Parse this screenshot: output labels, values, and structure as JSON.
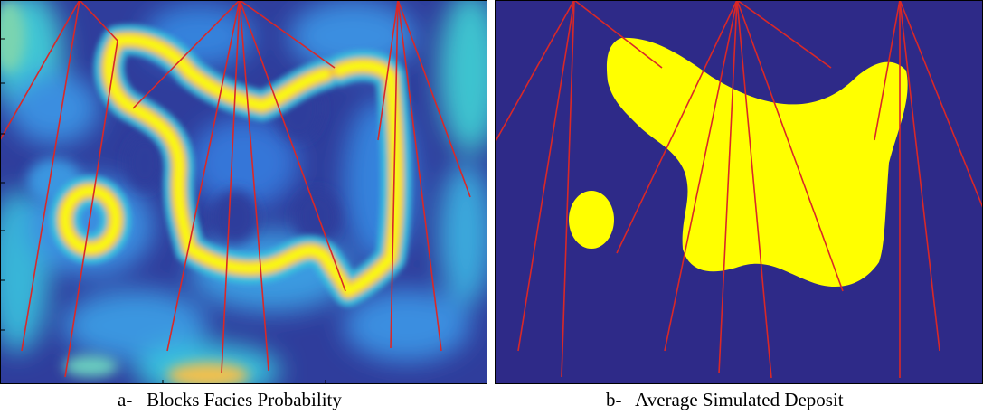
{
  "colors": {
    "background_deep_blue": "#352a87",
    "cyan": "#39c3dd",
    "light_blue": "#3a8ee0",
    "yellow": "#f9fb0e",
    "orange": "#f6c43a",
    "well_line_red": "#d92828",
    "deposit_yellow": "#ffff00",
    "deposit_background": "#2e2a88"
  },
  "panels": [
    {
      "id": "a",
      "prefix": "a-",
      "title": "Blocks Facies Probability"
    },
    {
      "id": "b",
      "prefix": "b-",
      "title": "Average Simulated Deposit"
    }
  ]
}
